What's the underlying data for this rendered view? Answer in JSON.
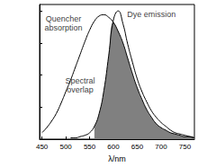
{
  "chart_data": {
    "type": "line",
    "x_label": "λ/nm",
    "x": [
      450,
      460,
      470,
      480,
      490,
      500,
      510,
      520,
      530,
      540,
      550,
      560,
      570,
      580,
      590,
      600,
      610,
      620,
      630,
      640,
      650,
      660,
      670,
      680,
      690,
      700,
      710,
      720,
      730,
      740,
      750,
      760,
      770
    ],
    "series": [
      {
        "name": "Spectral overlap",
        "color": "#808080",
        "type": "area",
        "values": [
          null,
          null,
          null,
          null,
          null,
          null,
          null,
          null,
          null,
          null,
          null,
          0.1,
          0.2,
          0.38,
          0.65,
          0.91,
          0.84,
          0.75,
          0.63,
          0.51,
          0.4,
          0.31,
          0.23,
          0.17,
          0.12,
          0.09,
          0.07,
          0.05,
          0.04,
          0.03,
          0.02,
          0.02,
          0.01
        ]
      },
      {
        "name": "Quencher absorption",
        "color": "#000000",
        "type": "line",
        "values": [
          0.05,
          0.09,
          0.14,
          0.2,
          0.28,
          0.37,
          0.46,
          0.56,
          0.66,
          0.76,
          0.85,
          0.92,
          0.96,
          0.97,
          0.95,
          0.91,
          0.84,
          0.75,
          0.63,
          0.51,
          0.4,
          0.31,
          0.23,
          0.17,
          0.12,
          0.09,
          0.07,
          0.05,
          0.04,
          0.03,
          0.02,
          0.02,
          0.01
        ]
      },
      {
        "name": "Dye emission",
        "color": "#000000",
        "type": "line",
        "values": [
          null,
          null,
          null,
          null,
          null,
          null,
          0.01,
          0.01,
          0.02,
          0.03,
          0.05,
          0.1,
          0.2,
          0.38,
          0.65,
          0.93,
          1.0,
          0.9,
          0.74,
          0.6,
          0.47,
          0.37,
          0.29,
          0.22,
          0.17,
          0.13,
          0.1,
          0.07,
          0.05,
          0.04,
          0.03,
          0.02,
          0.01
        ]
      }
    ],
    "annotations": [
      {
        "text": "Quencher\nabsorption",
        "x": 495,
        "y": 0.9
      },
      {
        "text": "Dye emission",
        "x": 680,
        "y": 0.97
      },
      {
        "text": "Spectral\noverlap",
        "x": 530,
        "y": 0.42
      }
    ],
    "xlim": [
      445,
      770
    ],
    "xticks": [
      450,
      500,
      550,
      600,
      650,
      700,
      750
    ],
    "ylim": [
      0,
      1.05
    ],
    "yticks": [
      0,
      0.25,
      0.5,
      0.75,
      1
    ],
    "tick_labels": "x",
    "grid": false
  }
}
